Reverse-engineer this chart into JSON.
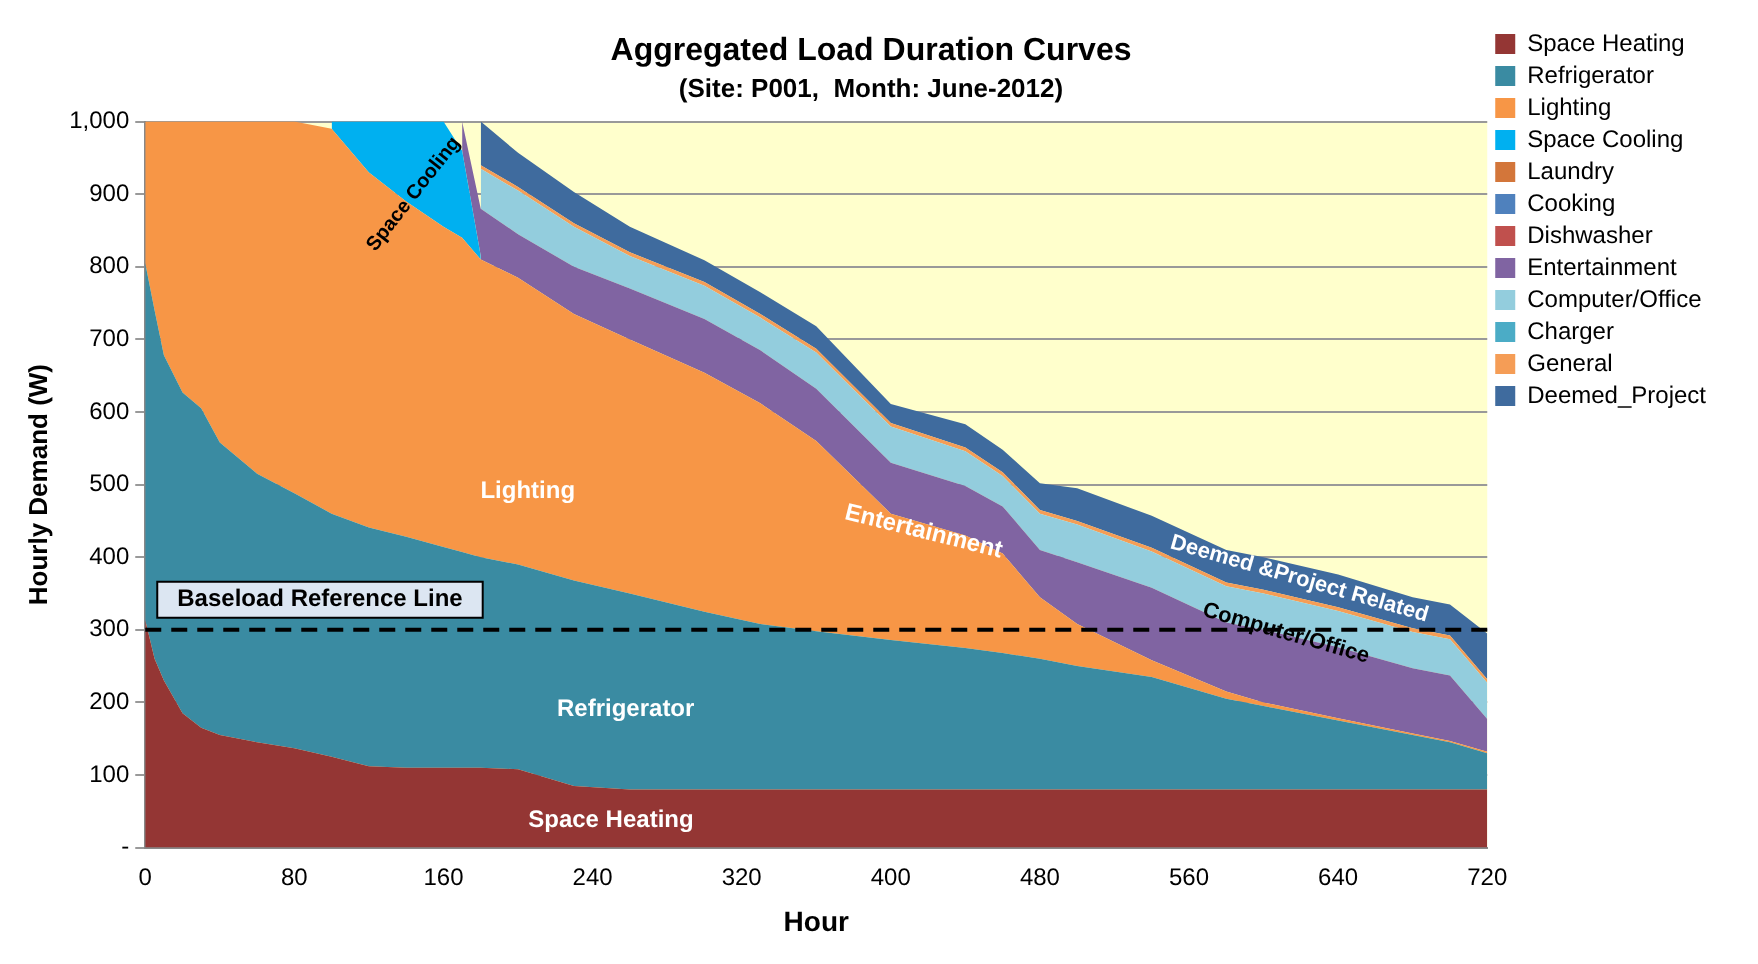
{
  "chart_data": {
    "type": "area",
    "title": "Aggregated Load Duration Curves",
    "subtitle": "(Site: P001,  Month: June-2012)",
    "xlabel": "Hour",
    "ylabel": "Hourly Demand (W)",
    "stacked": true,
    "x": [
      0,
      5,
      10,
      20,
      30,
      40,
      60,
      80,
      100,
      120,
      140,
      160,
      170,
      180,
      200,
      230,
      260,
      300,
      330,
      360,
      400,
      440,
      460,
      480,
      500,
      540,
      580,
      600,
      640,
      680,
      700,
      720
    ],
    "series": [
      {
        "name": "Space Heating",
        "color": "#943634",
        "values": [
          313,
          260,
          230,
          185,
          165,
          155,
          145,
          137,
          125,
          112,
          110,
          110,
          110,
          110,
          108,
          85,
          80,
          80,
          80,
          80,
          80,
          80,
          80,
          80,
          80,
          80,
          80,
          80,
          80,
          80,
          80,
          80
        ]
      },
      {
        "name": "Refrigerator",
        "color": "#3a8ba2",
        "values": [
          492,
          480,
          448,
          442,
          440,
          403,
          370,
          351,
          335,
          329,
          318,
          304,
          297,
          290,
          282,
          283,
          270,
          245,
          228,
          218,
          206,
          195,
          188,
          180,
          170,
          155,
          125,
          115,
          95,
          75,
          65,
          50
        ]
      },
      {
        "name": "Lighting",
        "color": "#f79646",
        "values": [
          195,
          260,
          322,
          373,
          395,
          442,
          485,
          512,
          530,
          489,
          462,
          441,
          433,
          410,
          395,
          367,
          350,
          329,
          304,
          262,
          174,
          155,
          137,
          85,
          58,
          23,
          10,
          5,
          3,
          2,
          2,
          2
        ]
      },
      {
        "name": "Space Cooling",
        "color": "#00b0f0",
        "values": [
          null,
          null,
          null,
          null,
          null,
          null,
          null,
          null,
          10,
          70,
          110,
          145,
          120,
          5,
          null,
          null,
          null,
          null,
          null,
          null,
          null,
          null,
          null,
          null,
          null,
          null,
          null,
          null,
          null,
          null,
          null,
          null
        ]
      },
      {
        "name": "Laundry",
        "color": "#d3763a",
        "values": [
          null,
          null,
          null,
          null,
          null,
          null,
          null,
          null,
          null,
          null,
          null,
          null,
          null,
          null,
          null,
          null,
          null,
          null,
          null,
          null,
          null,
          null,
          null,
          null,
          null,
          null,
          null,
          null,
          null,
          null,
          null,
          null
        ]
      },
      {
        "name": "Cooking",
        "color": "#4f81bd",
        "values": [
          null,
          null,
          null,
          null,
          null,
          null,
          null,
          null,
          null,
          null,
          null,
          null,
          null,
          null,
          null,
          null,
          null,
          null,
          null,
          null,
          null,
          null,
          null,
          null,
          null,
          null,
          null,
          null,
          null,
          null,
          null,
          null
        ]
      },
      {
        "name": "Dishwasher",
        "color": "#c0504d",
        "values": [
          null,
          null,
          null,
          null,
          null,
          null,
          null,
          null,
          null,
          null,
          null,
          null,
          null,
          null,
          null,
          null,
          null,
          null,
          null,
          null,
          null,
          null,
          null,
          null,
          null,
          null,
          null,
          null,
          null,
          null,
          null,
          null
        ]
      },
      {
        "name": "Entertainment",
        "color": "#8064a2",
        "values": [
          null,
          null,
          null,
          null,
          null,
          null,
          null,
          null,
          null,
          null,
          null,
          null,
          40,
          65,
          60,
          65,
          70,
          74,
          73,
          72,
          70,
          68,
          65,
          65,
          85,
          100,
          95,
          100,
          98,
          90,
          90,
          45
        ]
      },
      {
        "name": "Computer/Office",
        "color": "#93cddd",
        "values": [
          null,
          null,
          null,
          null,
          null,
          null,
          null,
          null,
          null,
          null,
          null,
          null,
          null,
          55,
          60,
          55,
          45,
          46,
          45,
          50,
          50,
          48,
          42,
          50,
          52,
          50,
          50,
          50,
          50,
          50,
          50,
          50
        ]
      },
      {
        "name": "Charger",
        "color": "#4bacc6",
        "values": [
          null,
          null,
          null,
          null,
          null,
          null,
          null,
          null,
          null,
          null,
          null,
          null,
          null,
          null,
          null,
          null,
          null,
          null,
          null,
          null,
          null,
          null,
          null,
          null,
          null,
          null,
          null,
          null,
          null,
          null,
          null,
          null
        ]
      },
      {
        "name": "General",
        "color": "#f59d56",
        "values": [
          null,
          null,
          null,
          null,
          null,
          null,
          null,
          null,
          null,
          null,
          null,
          null,
          null,
          5,
          5,
          5,
          5,
          5,
          5,
          5,
          5,
          5,
          5,
          5,
          5,
          5,
          5,
          5,
          5,
          5,
          5,
          5
        ]
      },
      {
        "name": "Deemed_Project",
        "color": "#3f6b9e",
        "values": [
          null,
          null,
          null,
          null,
          null,
          null,
          null,
          null,
          null,
          null,
          null,
          null,
          null,
          60,
          47,
          43,
          35,
          30,
          30,
          31,
          26,
          32,
          31,
          37,
          45,
          44,
          45,
          45,
          45,
          43,
          43,
          63
        ]
      }
    ],
    "xlim": [
      0,
      720
    ],
    "xticks": [
      0,
      80,
      160,
      240,
      320,
      400,
      480,
      560,
      640,
      720
    ],
    "ylim": [
      0,
      1000
    ],
    "yticks": [
      {
        "value": 0,
        "label": "-"
      },
      100,
      200,
      300,
      400,
      500,
      600,
      700,
      800,
      900,
      {
        "value": 1000,
        "label": "1,000"
      }
    ],
    "grid": "y",
    "legend": "top right",
    "ref_lines": [
      {
        "axis": "y",
        "value": 300,
        "label": "Baseload Reference Line",
        "color": "#000000",
        "line_style": "dashed"
      }
    ],
    "annotations": [
      "Space Cooling",
      "Lighting",
      "Entertainment",
      "Deemed &Project Related",
      "Computer/Office",
      "Refrigerator",
      "Space Heating"
    ]
  }
}
